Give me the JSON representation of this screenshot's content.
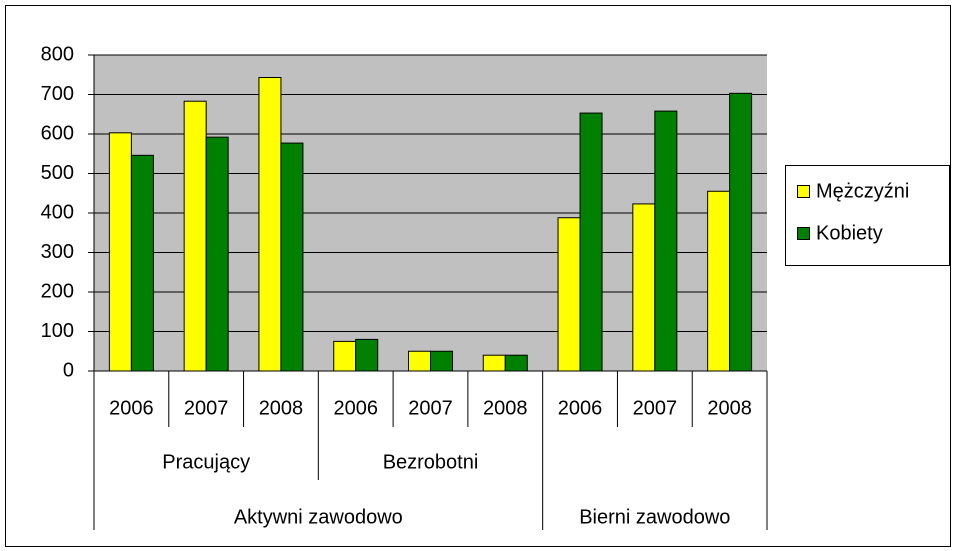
{
  "chart_data": {
    "type": "bar",
    "categories": [
      "2006",
      "2007",
      "2008",
      "2006",
      "2007",
      "2008",
      "2006",
      "2007",
      "2008"
    ],
    "subgroups": [
      {
        "label": "Pracujący",
        "size": 3
      },
      {
        "label": "Bezrobotni",
        "size": 3
      },
      {
        "label": null,
        "size": 3
      }
    ],
    "groups": [
      {
        "label": "Aktywni zawodowo",
        "size": 6
      },
      {
        "label": "Bierni zawodowo",
        "size": 3
      }
    ],
    "series": [
      {
        "name": "Mężczyźni",
        "color": "#ffff00",
        "values": [
          603,
          683,
          743,
          75,
          50,
          40,
          388,
          423,
          455
        ]
      },
      {
        "name": "Kobiety",
        "color": "#008000",
        "values": [
          546,
          592,
          577,
          80,
          50,
          40,
          653,
          658,
          703
        ]
      }
    ],
    "ylim": [
      0,
      800
    ],
    "yticks": [
      0,
      100,
      200,
      300,
      400,
      500,
      600,
      700,
      800
    ],
    "grid": true,
    "legend": "right"
  }
}
